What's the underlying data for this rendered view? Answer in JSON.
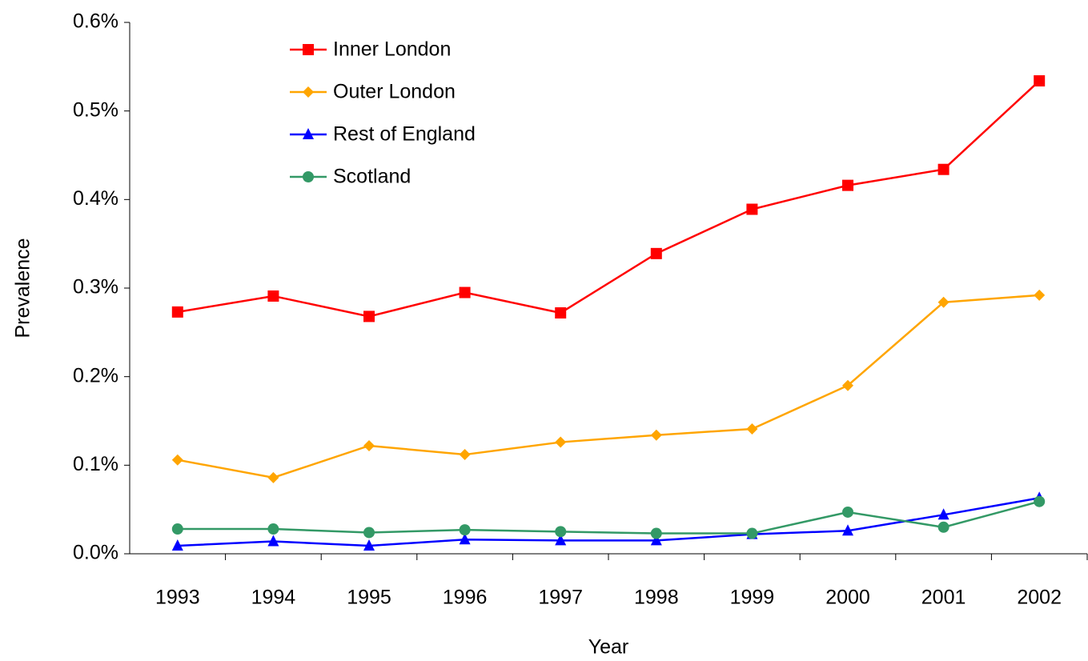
{
  "chart_data": {
    "type": "line",
    "xlabel": "Year",
    "ylabel": "Prevalence",
    "categories": [
      "1993",
      "1994",
      "1995",
      "1996",
      "1997",
      "1998",
      "1999",
      "2000",
      "2001",
      "2002"
    ],
    "series": [
      {
        "name": "Inner London",
        "color": "#ff0000",
        "marker": "square",
        "values": [
          0.273,
          0.291,
          0.268,
          0.295,
          0.272,
          0.339,
          0.389,
          0.416,
          0.434,
          0.534
        ]
      },
      {
        "name": "Outer London",
        "color": "#ffa500",
        "marker": "diamond",
        "values": [
          0.106,
          0.086,
          0.122,
          0.112,
          0.126,
          0.134,
          0.141,
          0.19,
          0.284,
          0.292
        ]
      },
      {
        "name": "Rest of England",
        "color": "#0000ff",
        "marker": "triangle",
        "values": [
          0.009,
          0.014,
          0.009,
          0.016,
          0.015,
          0.015,
          0.022,
          0.026,
          0.044,
          0.063
        ]
      },
      {
        "name": "Scotland",
        "color": "#339966",
        "marker": "circle",
        "values": [
          0.028,
          0.028,
          0.024,
          0.027,
          0.025,
          0.023,
          0.023,
          0.047,
          0.03,
          0.059
        ]
      }
    ],
    "ylim": [
      0,
      0.6
    ],
    "yticks": [
      {
        "value": 0,
        "label": "0.0%"
      },
      {
        "value": 0.1,
        "label": "0.1%"
      },
      {
        "value": 0.2,
        "label": "0.2%"
      },
      {
        "value": 0.3,
        "label": "0.3%"
      },
      {
        "value": 0.4,
        "label": "0.4%"
      },
      {
        "value": 0.5,
        "label": "0.5%"
      },
      {
        "value": 0.6,
        "label": "0.6%"
      }
    ],
    "grid": false,
    "legend": "upper left"
  }
}
